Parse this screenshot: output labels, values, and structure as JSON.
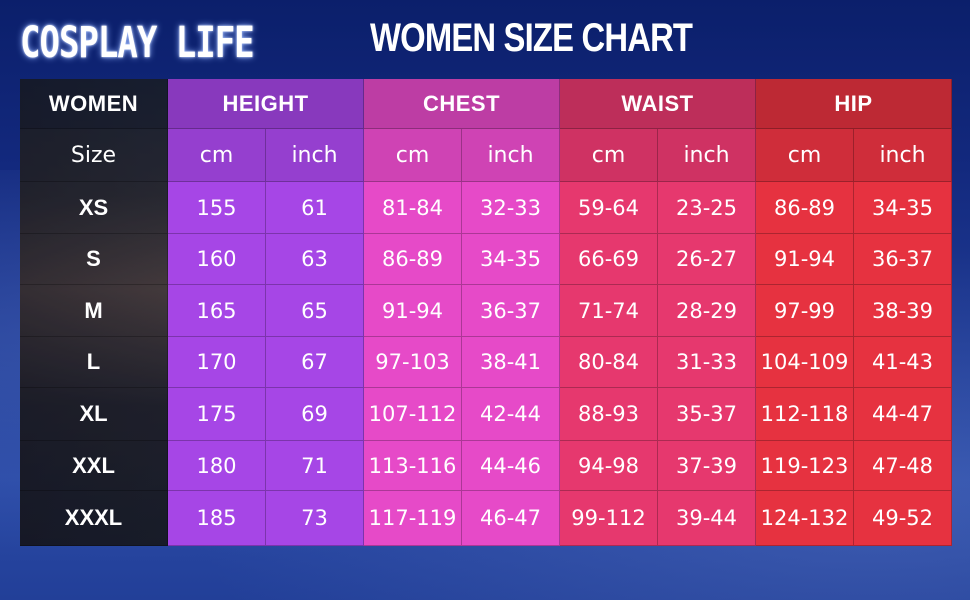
{
  "brand": "COSPLAY LIFE",
  "title": "WOMEN SIZE CHART",
  "corner_label": "WOMEN",
  "size_label": "Size",
  "chart_data": {
    "type": "table",
    "title": "WOMEN SIZE CHART",
    "groups": [
      {
        "name": "HEIGHT",
        "color": "#a646e6",
        "units": [
          "cm",
          "inch"
        ]
      },
      {
        "name": "CHEST",
        "color": "#e64ac8",
        "units": [
          "cm",
          "inch"
        ]
      },
      {
        "name": "WAIST",
        "color": "#e6386e",
        "units": [
          "cm",
          "inch"
        ]
      },
      {
        "name": "HIP",
        "color": "#e63240",
        "units": [
          "cm",
          "inch"
        ]
      }
    ],
    "sizes": [
      "XS",
      "S",
      "M",
      "L",
      "XL",
      "XXL",
      "XXXL"
    ],
    "rows": [
      [
        "155",
        "61",
        "81-84",
        "32-33",
        "59-64",
        "23-25",
        "86-89",
        "34-35"
      ],
      [
        "160",
        "63",
        "86-89",
        "34-35",
        "66-69",
        "26-27",
        "91-94",
        "36-37"
      ],
      [
        "165",
        "65",
        "91-94",
        "36-37",
        "71-74",
        "28-29",
        "97-99",
        "38-39"
      ],
      [
        "170",
        "67",
        "97-103",
        "38-41",
        "80-84",
        "31-33",
        "104-109",
        "41-43"
      ],
      [
        "175",
        "69",
        "107-112",
        "42-44",
        "88-93",
        "35-37",
        "112-118",
        "44-47"
      ],
      [
        "180",
        "71",
        "113-116",
        "44-46",
        "94-98",
        "37-39",
        "119-123",
        "47-48"
      ],
      [
        "185",
        "73",
        "117-119",
        "46-47",
        "99-112",
        "39-44",
        "124-132",
        "49-52"
      ]
    ]
  }
}
